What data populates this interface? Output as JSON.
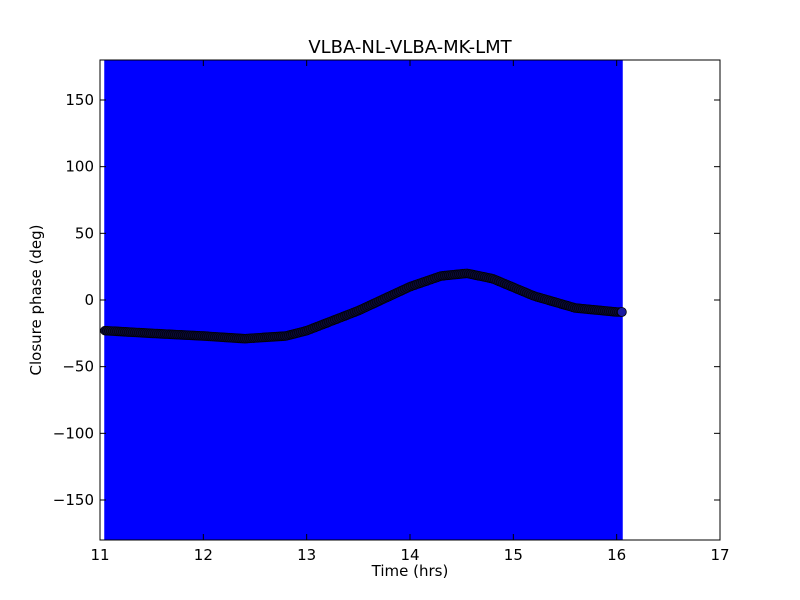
{
  "chart_data": {
    "type": "scatter",
    "title": "VLBA-NL-VLBA-MK-LMT",
    "xlabel": "Time (hrs)",
    "ylabel": "Closure phase (deg)",
    "xlim": [
      11,
      17
    ],
    "ylim": [
      -180,
      180
    ],
    "xticks": [
      11,
      12,
      13,
      14,
      15,
      16,
      17
    ],
    "yticks": [
      150,
      100,
      50,
      0,
      -50,
      -100,
      -150
    ],
    "grid": false,
    "legend": "none",
    "errorbar_color": "#0000ff",
    "marker_color": "#000000",
    "errorbar_span": [
      -180,
      180
    ],
    "series": [
      {
        "x": [
          11.05,
          11.5,
          12.0,
          12.4,
          12.8,
          13.0,
          13.5,
          14.0,
          14.3,
          14.55,
          14.8,
          15.2,
          15.6,
          16.0,
          16.05
        ],
        "y": [
          -23,
          -25,
          -27,
          -29,
          -27,
          -23,
          -8,
          10,
          18,
          20,
          16,
          3,
          -6,
          -9,
          -9
        ]
      }
    ]
  }
}
